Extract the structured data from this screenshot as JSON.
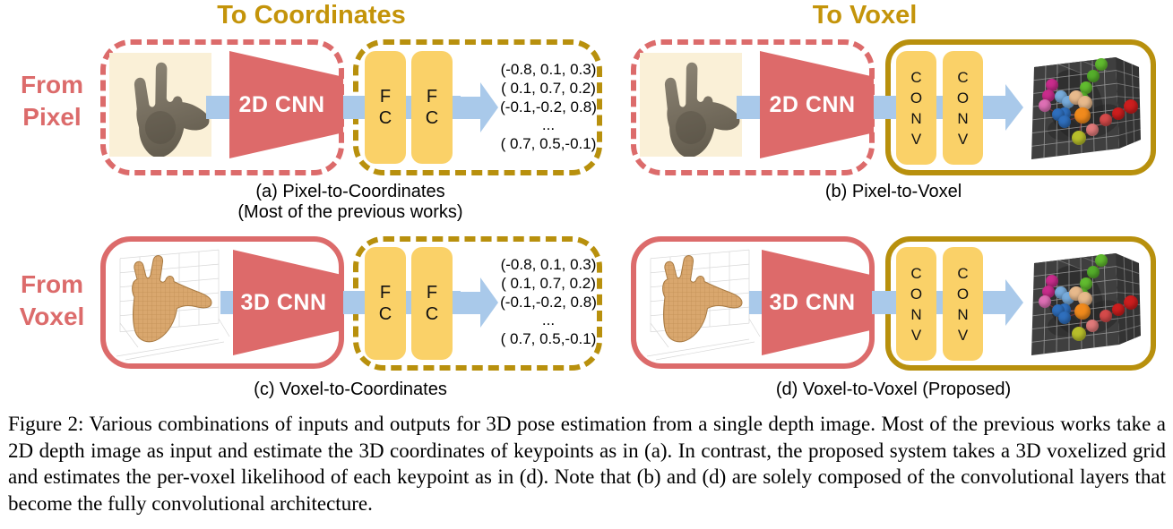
{
  "figure": {
    "column_headers": {
      "to_coordinates": "To Coordinates",
      "to_voxel": "To Voxel"
    },
    "row_headers": {
      "from_pixel": "From\nPixel",
      "from_voxel": "From\nVoxel"
    },
    "panels": {
      "a": {
        "cnn_label": "2D CNN",
        "layer_labels": [
          "F\nC",
          "F\nC"
        ],
        "caption": "(a) Pixel-to-Coordinates",
        "subcaption": "(Most of the previous works)"
      },
      "b": {
        "cnn_label": "2D CNN",
        "layer_labels": [
          "C\nO\nN\nV",
          "C\nO\nN\nV"
        ],
        "caption": "(b) Pixel-to-Voxel"
      },
      "c": {
        "cnn_label": "3D CNN",
        "layer_labels": [
          "F\nC",
          "F\nC"
        ],
        "caption": "(c) Voxel-to-Coordinates"
      },
      "d": {
        "cnn_label": "3D CNN",
        "layer_labels": [
          "C\nO\nN\nV",
          "C\nO\nN\nV"
        ],
        "caption": "(d) Voxel-to-Voxel (Proposed)"
      }
    },
    "coordinate_output_lines": [
      "(-0.8, 0.1, 0.3)",
      "( 0.1, 0.7, 0.2)",
      "(-0.1,-0.2, 0.8)",
      "...",
      "( 0.7, 0.5,-0.1)"
    ],
    "caption": "Figure 2: Various combinations of inputs and outputs for 3D pose estimation from a single depth image. Most of the previous works take a 2D depth image as input and estimate the 3D coordinates of keypoints as in (a). In contrast, the proposed system takes a 3D voxelized grid and estimates the per-voxel likelihood of each keypoint as in (d). Note that (b) and (d) are solely composed of the convolutional layers that become the fully convolutional architecture."
  },
  "images": {
    "depth_hand": "depth-map-hand-image",
    "voxel_hand": "voxelized-hand-image",
    "voxel_output": "voxel-grid-with-keypoints-image"
  },
  "colors": {
    "red": "#DC6B6B",
    "gold_border": "#B8900D",
    "gold_text": "#C4940A",
    "layer_yellow": "#FAD168",
    "arrow_blue": "#A9C9EA",
    "depth_bg": "#FAF0D7",
    "voxel_tan": "#D9A76E",
    "cube_bg": "#3F3F3F"
  },
  "voxel_keypoints": {
    "points": [
      {
        "x": 62,
        "y": 12,
        "r": 7,
        "color": "#61BB2F"
      },
      {
        "x": 56,
        "y": 22,
        "r": 7,
        "color": "#55AE2B"
      },
      {
        "x": 50,
        "y": 32,
        "r": 7,
        "color": "#61BB2F"
      },
      {
        "x": 47,
        "y": 42,
        "r": 7,
        "color": "#55AE2B"
      },
      {
        "x": 23,
        "y": 30,
        "r": 7,
        "color": "#C92C8C"
      },
      {
        "x": 20,
        "y": 39,
        "r": 7,
        "color": "#C92C8C"
      },
      {
        "x": 17,
        "y": 48,
        "r": 7,
        "color": "#DD6FB4"
      },
      {
        "x": 30,
        "y": 40,
        "r": 7,
        "color": "#77ABDB"
      },
      {
        "x": 36,
        "y": 45,
        "r": 7,
        "color": "#77ABDB"
      },
      {
        "x": 33,
        "y": 55,
        "r": 7,
        "color": "#2F6FBD"
      },
      {
        "x": 42,
        "y": 41,
        "r": 8,
        "color": "#E7B98C"
      },
      {
        "x": 49,
        "y": 46,
        "r": 8,
        "color": "#E7B98C"
      },
      {
        "x": 47,
        "y": 57,
        "r": 9,
        "color": "#F08A1D"
      },
      {
        "x": 28,
        "y": 56,
        "r": 7,
        "color": "#2F6FBD"
      },
      {
        "x": 33,
        "y": 62,
        "r": 7,
        "color": "#2F6FBD"
      },
      {
        "x": 86,
        "y": 49,
        "r": 8,
        "color": "#CC1E1E"
      },
      {
        "x": 76,
        "y": 55,
        "r": 7,
        "color": "#CC1E1E"
      },
      {
        "x": 66,
        "y": 61,
        "r": 7,
        "color": "#D44A4A"
      },
      {
        "x": 55,
        "y": 69,
        "r": 7,
        "color": "#E07A7A"
      },
      {
        "x": 44,
        "y": 76,
        "r": 8,
        "color": "#B7BE2B"
      }
    ],
    "bones": [
      [
        0,
        1
      ],
      [
        1,
        2
      ],
      [
        2,
        3
      ],
      [
        3,
        12
      ],
      [
        4,
        5
      ],
      [
        5,
        6
      ],
      [
        6,
        13
      ],
      [
        7,
        8
      ],
      [
        8,
        9
      ],
      [
        9,
        12
      ],
      [
        10,
        11
      ],
      [
        11,
        12
      ],
      [
        13,
        14
      ],
      [
        14,
        12
      ],
      [
        15,
        16
      ],
      [
        16,
        17
      ],
      [
        17,
        18
      ],
      [
        18,
        19
      ],
      [
        19,
        12
      ]
    ]
  }
}
